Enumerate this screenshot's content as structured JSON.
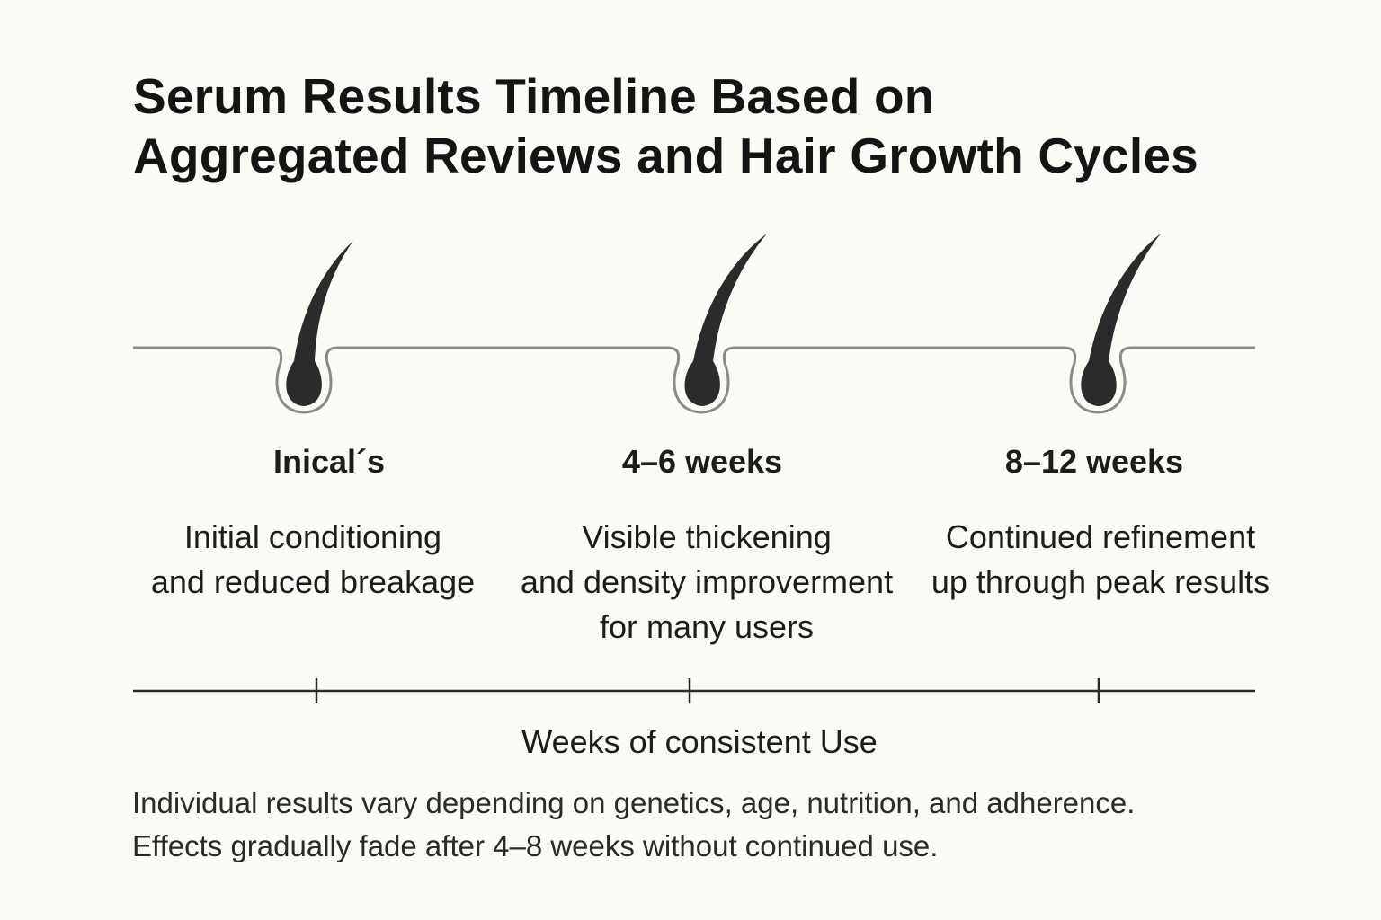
{
  "title": {
    "line1": "Serum Results Timeline Based on",
    "line2": "Aggregated Reviews and Hair Growth Cycles"
  },
  "stages": [
    {
      "label": "Inical´s",
      "description": [
        "Initial conditioning",
        "and reduced breakage"
      ]
    },
    {
      "label": "4–6 weeks",
      "description": [
        "Visible thickening",
        "and density improverment",
        "for many users"
      ]
    },
    {
      "label": "8–12 weeks",
      "description": [
        "Continued refinement",
        "up through peak results"
      ]
    }
  ],
  "axis": {
    "label": "Weeks of consistent Use"
  },
  "note": {
    "line1": "Individual results vary depending on genetics, age, nutrition, and adherence.",
    "line2": "Effects gradually fade after 4–8 weeks without continued use."
  },
  "icons": [
    "hair-follicle-icon",
    "hair-follicle-icon",
    "hair-follicle-icon"
  ],
  "colors": {
    "background": "#fbfaf5",
    "hair": "#2b2b2b",
    "skin_line": "#8a8a8a",
    "axis": "#2a2a2a"
  }
}
